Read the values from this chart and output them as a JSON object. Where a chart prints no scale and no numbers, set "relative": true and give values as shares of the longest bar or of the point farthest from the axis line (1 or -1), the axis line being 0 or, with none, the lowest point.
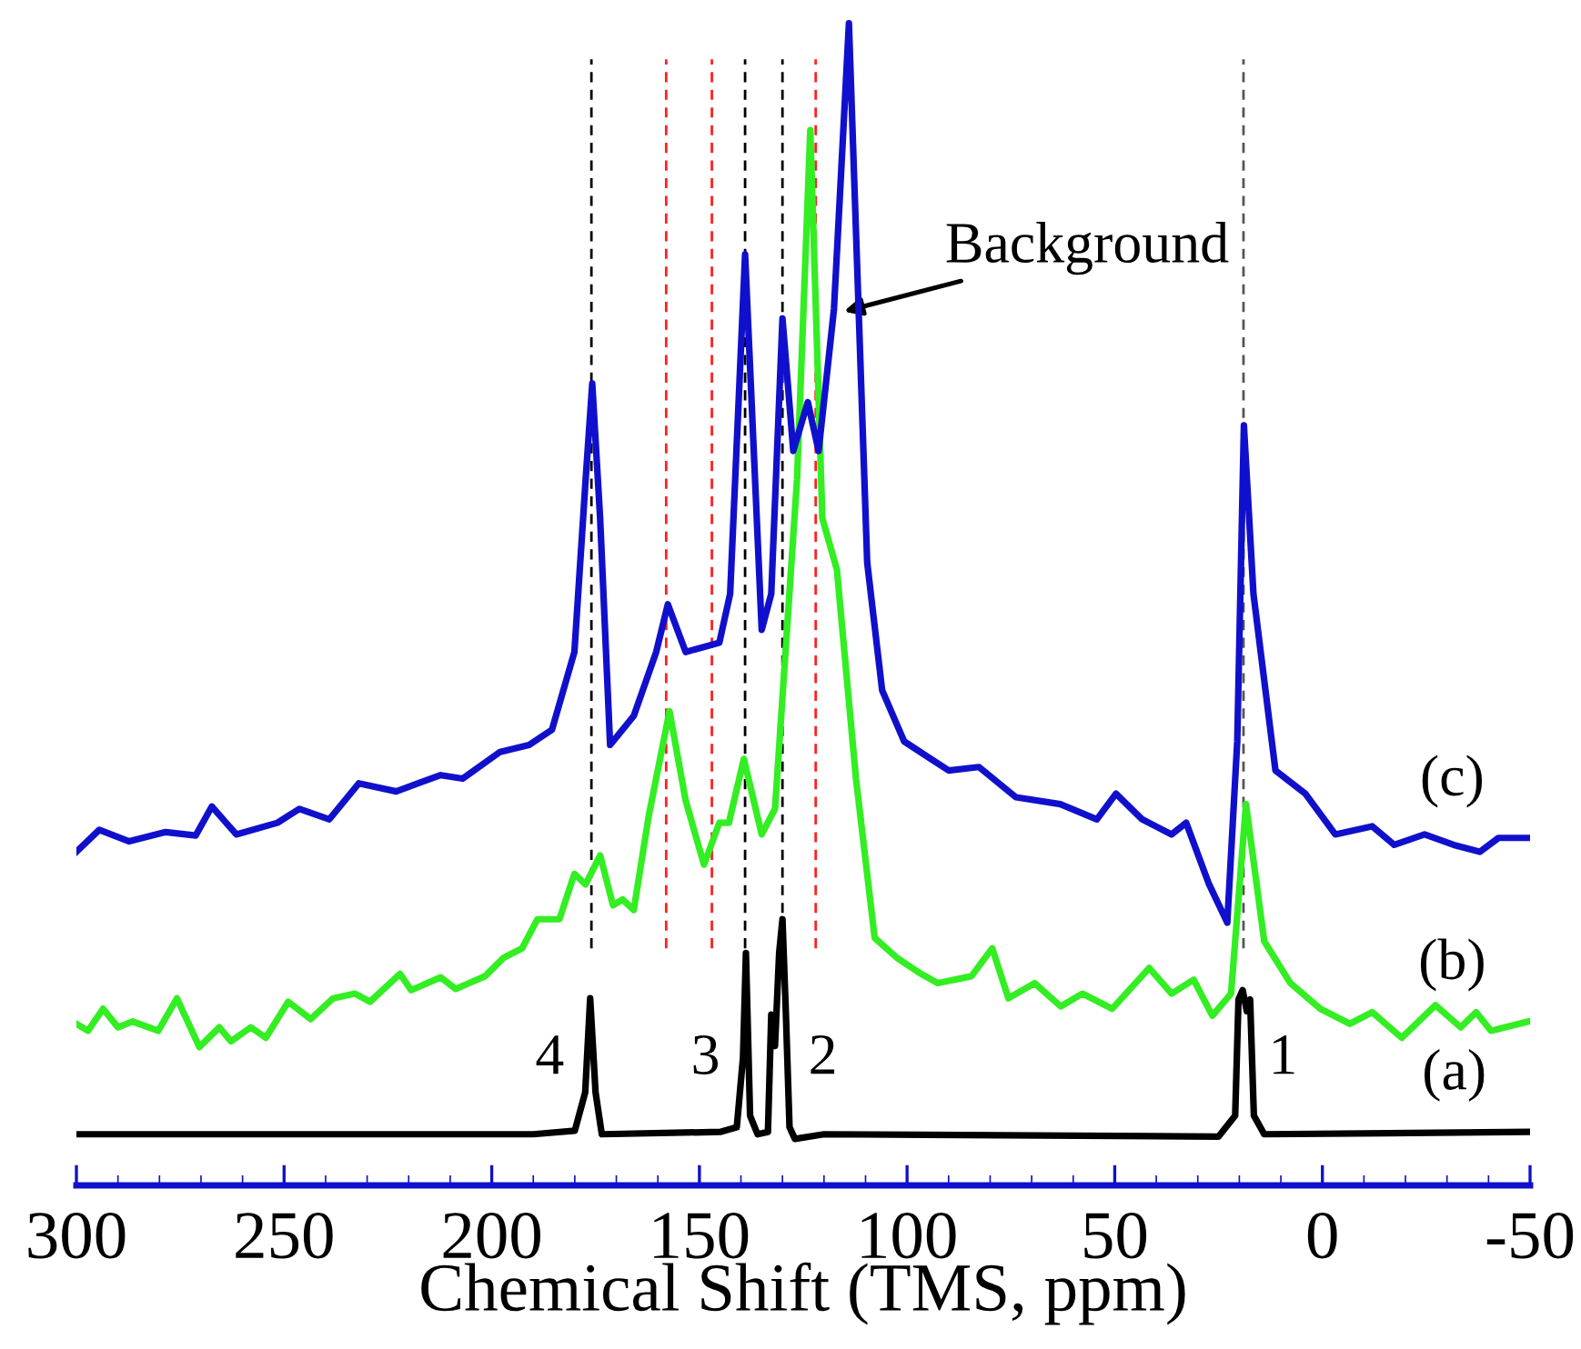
{
  "chart_data": {
    "type": "line",
    "relative": true,
    "xlabel": "Chemical Shift (TMS, ppm)",
    "xlim": [
      300,
      -50
    ],
    "xticks": [
      300,
      250,
      200,
      150,
      100,
      50,
      0,
      -50
    ],
    "tick_labels": "x",
    "grid": false,
    "legend": false,
    "series": [
      {
        "name": "(a)",
        "color": "#000000",
        "x": [
          300,
          190,
          180,
          177.5,
          176.3,
          175,
          173.5,
          145,
          141,
          139.5,
          138.8,
          137.8,
          136,
          133.5,
          132.7,
          131.8,
          130.8,
          130,
          129.2,
          128.3,
          127,
          120,
          25,
          21,
          20.2,
          19.2,
          18.2,
          17.4,
          16.5,
          14,
          -50
        ],
        "values": [
          0.044,
          0.044,
          0.047,
          0.08,
          0.161,
          0.08,
          0.044,
          0.046,
          0.05,
          0.11,
          0.2,
          0.06,
          0.044,
          0.046,
          0.147,
          0.12,
          0.2,
          0.229,
          0.15,
          0.05,
          0.04,
          0.044,
          0.042,
          0.06,
          0.16,
          0.168,
          0.15,
          0.16,
          0.06,
          0.044,
          0.046
        ]
      },
      {
        "name": "(b)",
        "color": "#33ee22",
        "x": [
          300,
          297.2,
          293.6,
          290,
          286.5,
          280.3,
          275.8,
          270.4,
          265.6,
          262.8,
          258,
          254.4,
          249,
          243.6,
          238.2,
          232.9,
          229.3,
          222.1,
          219.4,
          212.3,
          208.7,
          201.6,
          197.1,
          192.7,
          189,
          183.7,
          180.1,
          177.4,
          173.9,
          170.8,
          168.5,
          165.8,
          162.2,
          157.2,
          153.3,
          148.9,
          145.2,
          142.9,
          139.3,
          135,
          131.8,
          126.5,
          123.3,
          120.4,
          116.9,
          112.3,
          107.8,
          102.5,
          97.1,
          92.6,
          84.5,
          79.5,
          75.6,
          69.3,
          63,
          57.8,
          50.6,
          41.7,
          36.3,
          31,
          26.5,
          22,
          18.4,
          14,
          7.7,
          0.5,
          -6.6,
          -12,
          -19.1,
          -27.2,
          -33.3,
          -37,
          -40.6,
          -49.5
        ],
        "values": [
          0.139,
          0.133,
          0.152,
          0.136,
          0.141,
          0.133,
          0.161,
          0.119,
          0.136,
          0.124,
          0.136,
          0.127,
          0.158,
          0.143,
          0.161,
          0.165,
          0.158,
          0.182,
          0.168,
          0.179,
          0.169,
          0.18,
          0.196,
          0.204,
          0.229,
          0.229,
          0.268,
          0.259,
          0.284,
          0.241,
          0.246,
          0.237,
          0.318,
          0.408,
          0.331,
          0.276,
          0.312,
          0.312,
          0.367,
          0.302,
          0.324,
          0.607,
          0.908,
          0.574,
          0.53,
          0.35,
          0.213,
          0.196,
          0.183,
          0.174,
          0.18,
          0.204,
          0.161,
          0.174,
          0.154,
          0.165,
          0.152,
          0.187,
          0.165,
          0.177,
          0.146,
          0.165,
          0.328,
          0.21,
          0.174,
          0.152,
          0.139,
          0.149,
          0.127,
          0.155,
          0.136,
          0.149,
          0.133,
          0.141
        ]
      },
      {
        "name": "(c)",
        "color": "#1010cc",
        "x": [
          300,
          294.5,
          287.3,
          278.5,
          271.3,
          267.4,
          261.5,
          251.6,
          246.3,
          239.1,
          232,
          223,
          217.7,
          212.3,
          207,
          198,
          191,
          185.5,
          180.1,
          177.4,
          175.8,
          173.9,
          171.5,
          165.8,
          160.4,
          157.6,
          153.3,
          145.2,
          142.6,
          139,
          135,
          132.7,
          130,
          127.4,
          123.9,
          121.3,
          117.6,
          114,
          109.6,
          106,
          100.7,
          90,
          82.7,
          73.8,
          63.1,
          54.3,
          49.7,
          43.4,
          36.3,
          32.8,
          27.4,
          22.9,
          20.5,
          18.9,
          16.6,
          11.3,
          4.1,
          -3.1,
          -12,
          -17.3,
          -24.6,
          -31.6,
          -37.9,
          -42.4,
          -49.5
        ],
        "values": [
          0.287,
          0.306,
          0.296,
          0.304,
          0.301,
          0.326,
          0.302,
          0.312,
          0.324,
          0.315,
          0.346,
          0.339,
          0.346,
          0.353,
          0.35,
          0.373,
          0.379,
          0.392,
          0.459,
          0.607,
          0.69,
          0.574,
          0.379,
          0.404,
          0.459,
          0.5,
          0.459,
          0.467,
          0.509,
          0.801,
          0.478,
          0.509,
          0.746,
          0.632,
          0.674,
          0.632,
          0.754,
          1.0,
          0.536,
          0.426,
          0.382,
          0.357,
          0.36,
          0.334,
          0.328,
          0.315,
          0.337,
          0.315,
          0.302,
          0.312,
          0.26,
          0.226,
          0.382,
          0.654,
          0.509,
          0.357,
          0.337,
          0.302,
          0.309,
          0.293,
          0.302,
          0.293,
          0.287,
          0.299,
          0.299
        ]
      }
    ],
    "ref_lines": [
      {
        "axis": "x",
        "value": 176,
        "color": "#000000",
        "line_style": "dashed"
      },
      {
        "axis": "x",
        "value": 139,
        "color": "#000000",
        "line_style": "dashed"
      },
      {
        "axis": "x",
        "value": 130,
        "color": "#000000",
        "line_style": "dashed"
      },
      {
        "axis": "x",
        "value": 19,
        "color": "#555555",
        "line_style": "dashed"
      },
      {
        "axis": "x",
        "value": 158,
        "color": "#ff2020",
        "line_style": "dashed"
      },
      {
        "axis": "x",
        "value": 147,
        "color": "#ff2020",
        "line_style": "dashed"
      },
      {
        "axis": "x",
        "value": 122,
        "color": "#ff2020",
        "line_style": "dashed"
      }
    ],
    "annotations": [
      {
        "text": "Background",
        "x": 115.2,
        "y": 0.752
      },
      {
        "text": "4",
        "x": 176.3,
        "y": 0.161
      },
      {
        "text": "3",
        "x": 138.8,
        "y": 0.2
      },
      {
        "text": "2",
        "x": 130,
        "y": 0.229
      },
      {
        "text": "1",
        "x": 19.2,
        "y": 0.168
      }
    ]
  }
}
